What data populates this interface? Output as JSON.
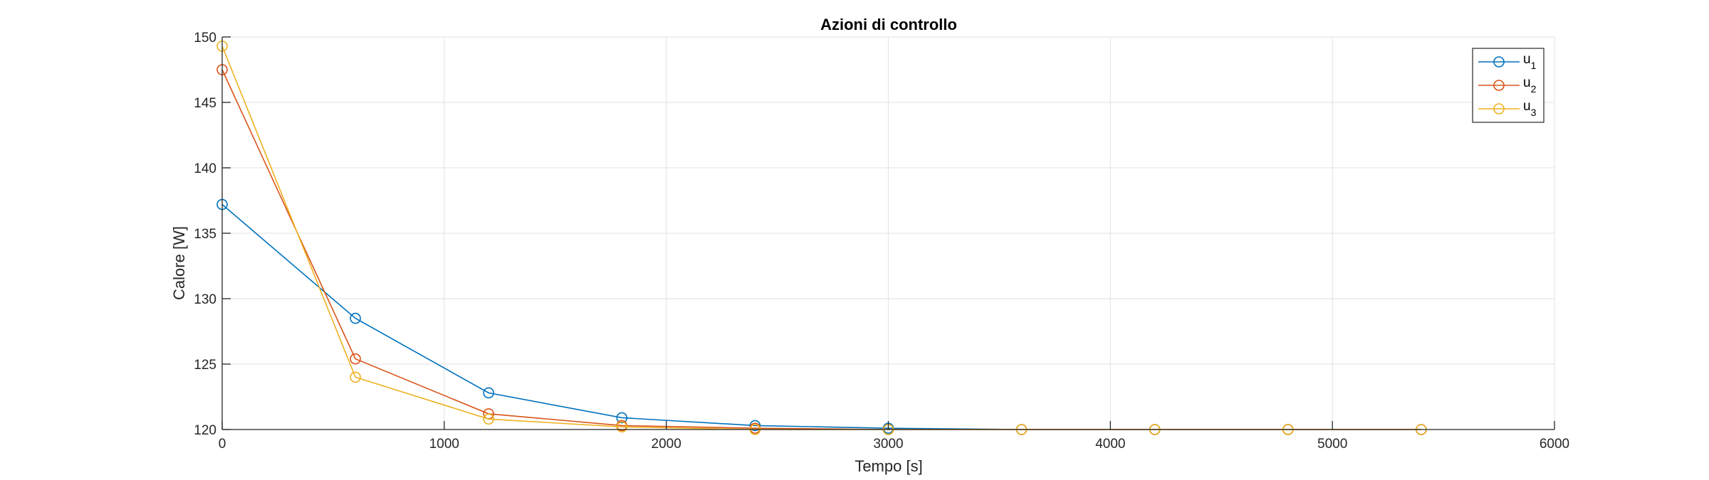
{
  "chart_data": {
    "type": "line",
    "title": "Azioni di controllo",
    "xlabel": "Tempo [s]",
    "ylabel": "Calore [W]",
    "xlim": [
      0,
      6000
    ],
    "ylim": [
      120,
      150
    ],
    "xticks": [
      0,
      1000,
      2000,
      3000,
      4000,
      5000,
      6000
    ],
    "yticks": [
      120,
      125,
      130,
      135,
      140,
      145,
      150
    ],
    "grid": true,
    "legend_position": "top-right",
    "series": [
      {
        "name": "u",
        "subscript": "1",
        "color": "#0072BD",
        "marker": "circle",
        "x": [
          0,
          600,
          1200,
          1800,
          2400,
          3000,
          3600,
          4200,
          4800,
          5400
        ],
        "y": [
          137.2,
          128.5,
          122.8,
          120.9,
          120.3,
          120.1,
          120.0,
          120.0,
          120.0,
          120.0
        ]
      },
      {
        "name": "u",
        "subscript": "2",
        "color": "#D95319",
        "marker": "circle",
        "x": [
          0,
          600,
          1200,
          1800,
          2400,
          3000,
          3600,
          4200,
          4800,
          5400
        ],
        "y": [
          147.5,
          125.4,
          121.2,
          120.3,
          120.1,
          120.0,
          120.0,
          120.0,
          120.0,
          120.0
        ]
      },
      {
        "name": "u",
        "subscript": "3",
        "color": "#EDB120",
        "marker": "circle",
        "x": [
          0,
          600,
          1200,
          1800,
          2400,
          3000,
          3600,
          4200,
          4800,
          5400
        ],
        "y": [
          149.3,
          124.0,
          120.8,
          120.2,
          120.0,
          120.0,
          120.0,
          120.0,
          120.0,
          120.0
        ]
      }
    ]
  }
}
